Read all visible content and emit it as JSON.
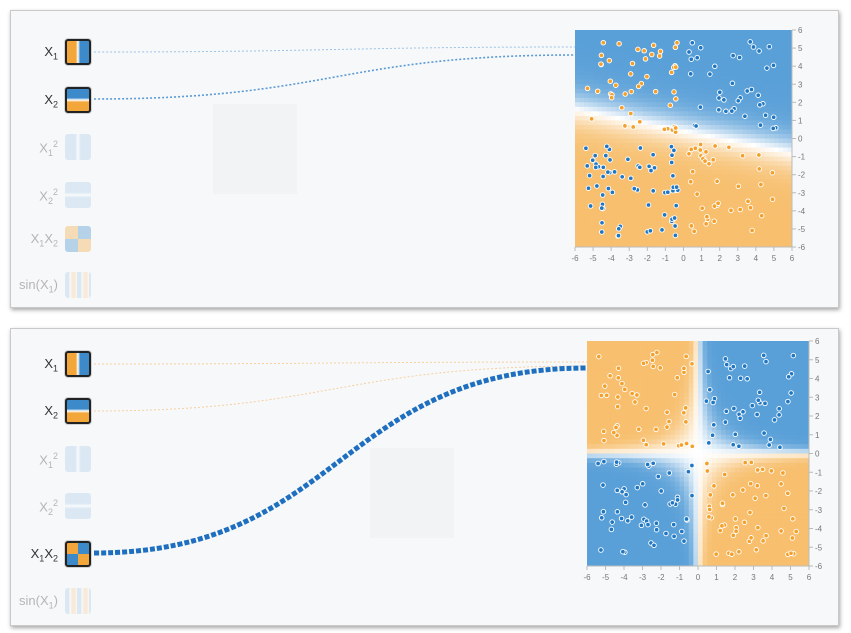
{
  "panels": [
    {
      "features": [
        {
          "label": "X",
          "sub": "1",
          "sup": "",
          "pattern": "x1",
          "active": true
        },
        {
          "label": "X",
          "sub": "2",
          "sup": "",
          "pattern": "x2",
          "active": true
        },
        {
          "label": "X",
          "sub": "1",
          "sup": "2",
          "pattern": "x1sq",
          "active": false
        },
        {
          "label": "X",
          "sub": "2",
          "sup": "2",
          "pattern": "x2sq",
          "active": false
        },
        {
          "label": "X",
          "sub": "1",
          "sup": "",
          "label2": "X",
          "sub2": "2",
          "pattern": "x1x2",
          "active": false
        },
        {
          "label": "sin(X",
          "sub": "1",
          "sup": "",
          "suffix": ")",
          "pattern": "sin",
          "active": false
        }
      ],
      "output_pattern": "linear",
      "right_ticks": [
        "6",
        "5",
        "4",
        "3",
        "2",
        "1",
        "0",
        "-1",
        "-2",
        "-3",
        "-4",
        "-5",
        "-6"
      ],
      "bottom_ticks": [
        "-6",
        "-5",
        "-4",
        "-3",
        "-2",
        "-1",
        "0",
        "1",
        "2",
        "3",
        "4",
        "5",
        "6"
      ]
    },
    {
      "features": [
        {
          "label": "X",
          "sub": "1",
          "sup": "",
          "pattern": "x1",
          "active": true
        },
        {
          "label": "X",
          "sub": "2",
          "sup": "",
          "pattern": "x2",
          "active": true
        },
        {
          "label": "X",
          "sub": "1",
          "sup": "2",
          "pattern": "x1sq",
          "active": false
        },
        {
          "label": "X",
          "sub": "2",
          "sup": "2",
          "pattern": "x2sq",
          "active": false
        },
        {
          "label": "X",
          "sub": "1",
          "sup": "",
          "label2": "X",
          "sub2": "2",
          "pattern": "x1x2",
          "active": true
        },
        {
          "label": "sin(X",
          "sub": "1",
          "sup": "",
          "suffix": ")",
          "pattern": "sin",
          "active": false
        }
      ],
      "output_pattern": "xor",
      "right_ticks": [
        "6",
        "5",
        "4",
        "3",
        "2",
        "1",
        "0",
        "-1",
        "-2",
        "-3",
        "-4",
        "-5",
        "-6"
      ],
      "bottom_ticks": [
        "-6",
        "-5",
        "-4",
        "-3",
        "-2",
        "-1",
        "0",
        "1",
        "2",
        "3",
        "4",
        "5",
        "6"
      ]
    }
  ],
  "colors": {
    "blue": "#3c8ac9",
    "orange": "#f3a73b",
    "light_blue": "#a8ccea",
    "light_orange": "#f9d19a"
  }
}
